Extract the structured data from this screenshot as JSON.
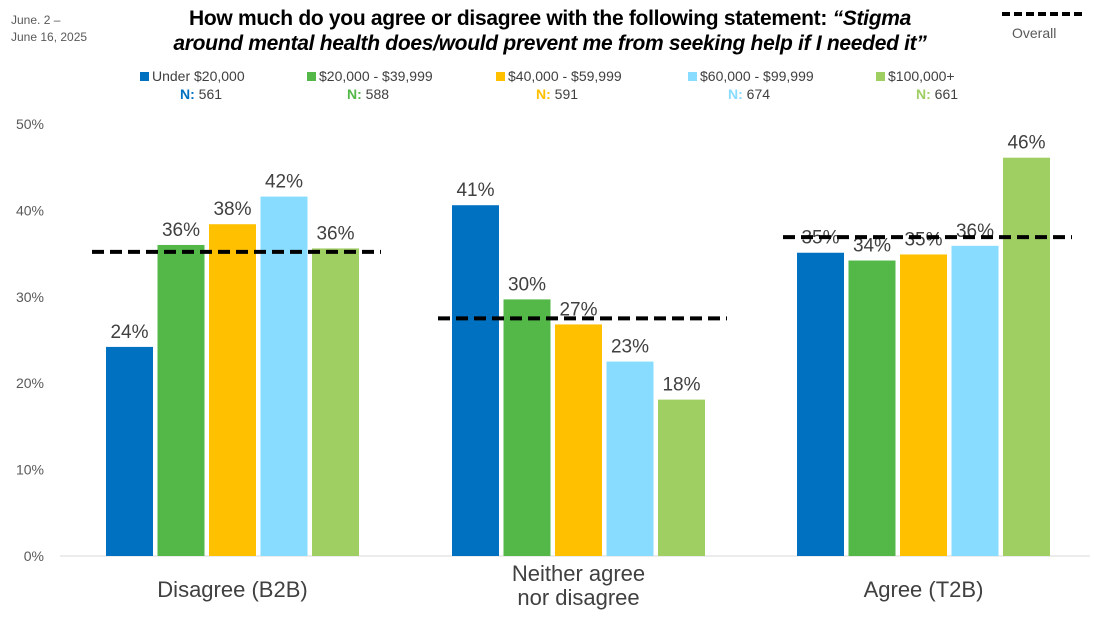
{
  "date_range": [
    "June. 2 –",
    "June 16, 2025"
  ],
  "title_plain": "How much do you agree or disagree with the following statement: ",
  "title_italic_1": "“Stigma",
  "title_italic_2": "around mental health does/would prevent me from seeking help if I needed it”",
  "overall_legend": "Overall",
  "colors": {
    "overall": "#000000",
    "grid": "#d9d9d9"
  },
  "chart_data": {
    "type": "bar",
    "title": "How much do you agree or disagree with the following statement: “Stigma around mental health does/would prevent me from seeking help if I needed it”",
    "categories": [
      "Disagree (B2B)",
      "Neither agree nor disagree",
      "Agree (T2B)"
    ],
    "category_lines": [
      [
        "Disagree (B2B)"
      ],
      [
        "Neither agree",
        "nor disagree"
      ],
      [
        "Agree (T2B)"
      ]
    ],
    "ylim": [
      0,
      50
    ],
    "yticks": [
      0,
      10,
      20,
      30,
      40,
      50
    ],
    "ytick_labels": [
      "0%",
      "10%",
      "20%",
      "30%",
      "40%",
      "50%"
    ],
    "grid": false,
    "legend_position": "top",
    "series": [
      {
        "name": "Under $20,000",
        "n_label": "N:",
        "n": "561",
        "color": "#0070c0",
        "values": [
          24.2,
          40.6,
          35.1
        ],
        "labels": [
          "24%",
          "41%",
          "35%"
        ]
      },
      {
        "name": "$20,000 - $39,999",
        "n_label": "N:",
        "n": "588",
        "color": "#53b848",
        "values": [
          36.0,
          29.7,
          34.2
        ],
        "labels": [
          "36%",
          "30%",
          "34%"
        ]
      },
      {
        "name": "$40,000 - $59,999",
        "n_label": "N:",
        "n": "591",
        "color": "#ffc000",
        "values": [
          38.4,
          26.8,
          34.9
        ],
        "labels": [
          "38%",
          "27%",
          "35%"
        ]
      },
      {
        "name": "$60,000 - $99,999",
        "n_label": "N:",
        "n": "674",
        "color": "#87dcff",
        "values": [
          41.6,
          22.5,
          35.9
        ],
        "labels": [
          "42%",
          "23%",
          "36%"
        ]
      },
      {
        "name": "$100,000+",
        "n_label": "N:",
        "n": "661",
        "color": "#9fce63",
        "values": [
          35.6,
          18.1,
          46.1
        ],
        "labels": [
          "36%",
          "18%",
          "46%"
        ]
      }
    ],
    "overall": {
      "name": "Overall",
      "values": [
        35.2,
        27.5,
        36.9
      ]
    }
  }
}
